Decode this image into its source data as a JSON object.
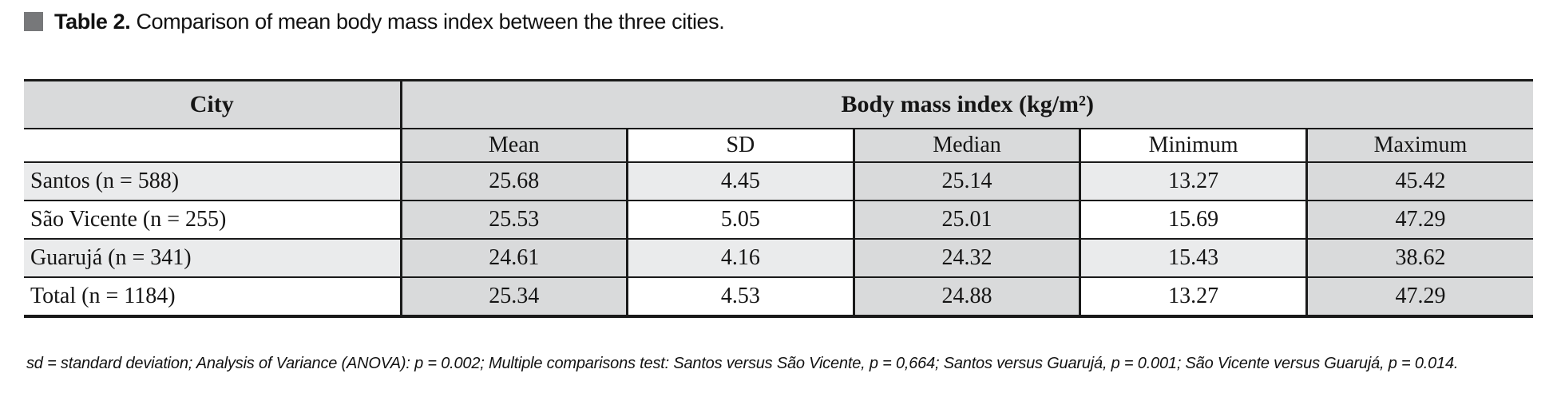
{
  "caption": {
    "label": "Table 2.",
    "text": "Comparison of mean body mass index between the three cities."
  },
  "table": {
    "header": {
      "city": "City",
      "group": "Body mass index (kg/m²)",
      "subcolumns": [
        "Mean",
        "SD",
        "Median",
        "Minimum",
        "Maximum"
      ]
    },
    "rows": [
      {
        "city": "Santos (n = 588)",
        "mean": "25.68",
        "sd": "4.45",
        "median": "25.14",
        "minimum": "13.27",
        "maximum": "45.42"
      },
      {
        "city": "São Vicente (n = 255)",
        "mean": "25.53",
        "sd": "5.05",
        "median": "25.01",
        "minimum": "15.69",
        "maximum": "47.29"
      },
      {
        "city": "Guarujá (n = 341)",
        "mean": "24.61",
        "sd": "4.16",
        "median": "24.32",
        "minimum": "15.43",
        "maximum": "38.62"
      },
      {
        "city": "Total (n = 1184)",
        "mean": "25.34",
        "sd": "4.53",
        "median": "24.88",
        "minimum": "13.27",
        "maximum": "47.29"
      }
    ]
  },
  "footnote": "sd = standard deviation; Analysis of Variance (ANOVA): p = 0.002; Multiple comparisons test: Santos versus São Vicente, p = 0,664; Santos versus Guarujá, p = 0.001; São Vicente versus Guarujá, p = 0.014.",
  "colors": {
    "column_shade": "#d9dadb",
    "row_stripe": "#eaebec",
    "border": "#1a1a1a",
    "bullet": "#77787a"
  },
  "chart_data": {
    "type": "table",
    "title": "Table 2. Comparison of mean body mass index between the three cities.",
    "columns": [
      "City",
      "Mean",
      "SD",
      "Median",
      "Minimum",
      "Maximum"
    ],
    "unit": "kg/m²",
    "rows": [
      [
        "Santos (n = 588)",
        25.68,
        4.45,
        25.14,
        13.27,
        45.42
      ],
      [
        "São Vicente (n = 255)",
        25.53,
        5.05,
        25.01,
        15.69,
        47.29
      ],
      [
        "Guarujá (n = 341)",
        24.61,
        4.16,
        24.32,
        15.43,
        38.62
      ],
      [
        "Total (n = 1184)",
        25.34,
        4.53,
        24.88,
        13.27,
        47.29
      ]
    ]
  }
}
